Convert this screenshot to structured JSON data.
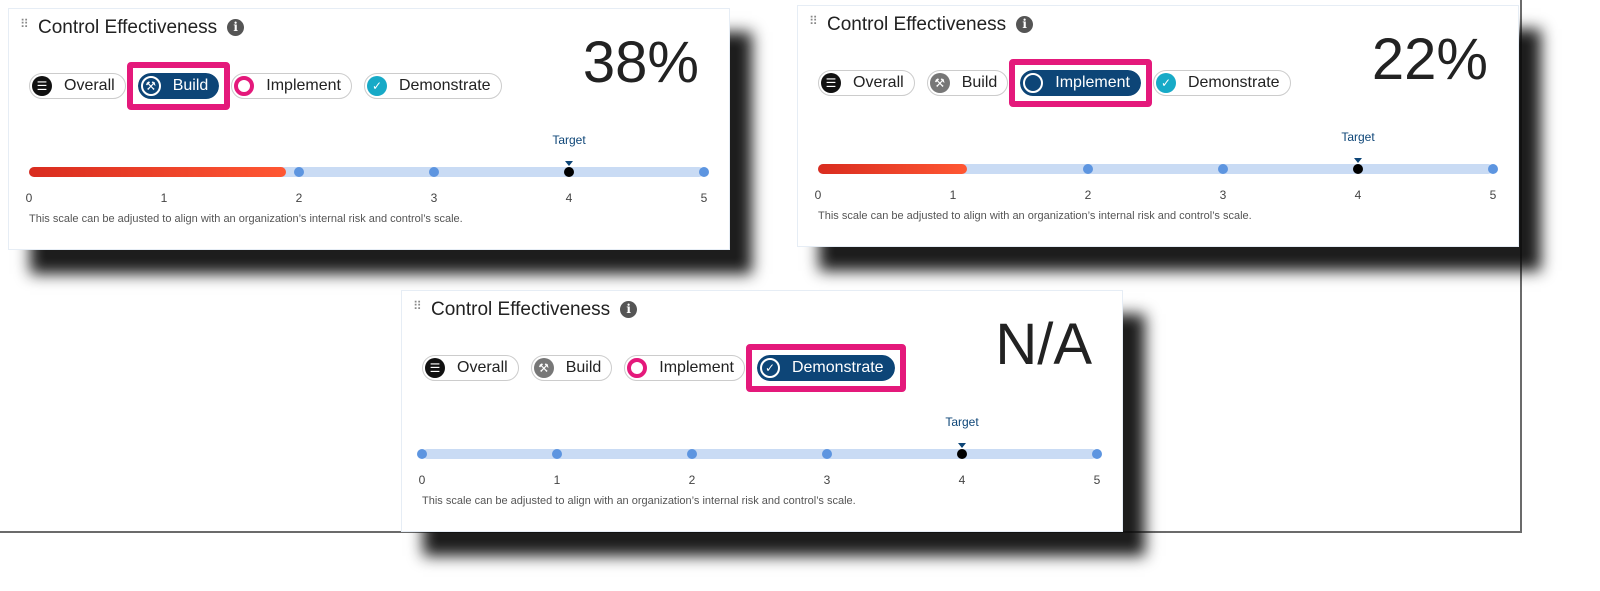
{
  "colors": {
    "selected_chip": "#0d4577",
    "highlight": "#e4197b",
    "fill_start": "#d92c1f",
    "fill_end": "#ff5733",
    "track": "#c9dbf4",
    "dot": "#5d95e0"
  },
  "scale": {
    "min": 0,
    "max": 5,
    "ticks": [
      "0",
      "1",
      "2",
      "3",
      "4",
      "5"
    ],
    "target": 4,
    "target_label": "Target",
    "note": "This scale can be adjusted to align with an organization’s internal risk and control’s scale."
  },
  "chips": [
    {
      "label": "Overall",
      "icon": "overall-icon"
    },
    {
      "label": "Build",
      "icon": "wrench-icon"
    },
    {
      "label": "Implement",
      "icon": "gear-icon"
    },
    {
      "label": "Demonstrate",
      "icon": "check-circle-icon"
    }
  ],
  "cards": [
    {
      "title": "Control Effectiveness",
      "value": "38%",
      "selected": 1,
      "progress": 1.9
    },
    {
      "title": "Control Effectiveness",
      "value": "22%",
      "selected": 2,
      "progress": 1.1
    },
    {
      "title": "Control Effectiveness",
      "value": "N/A",
      "selected": 3,
      "progress": null
    }
  ]
}
